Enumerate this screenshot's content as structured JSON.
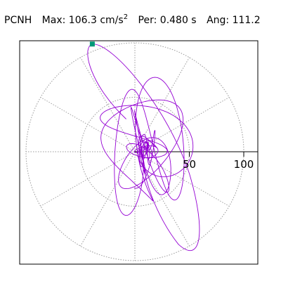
{
  "header": {
    "station": "PCNH",
    "max_label": "Max:",
    "max_value": "106.3",
    "max_unit_base": "cm/s",
    "max_unit_exp": "2",
    "per_label": "Per:",
    "per_value": "0.480 s",
    "ang_label": "Ang:",
    "ang_value": "111.2"
  },
  "chart_data": {
    "type": "polar-orbit",
    "radial_ticks": [
      50,
      100
    ],
    "radial_tick_labels": [
      "50",
      "100"
    ],
    "radial_range": [
      0,
      110
    ],
    "grid": "dotted concentric circles at 50 and 100 with radial spokes every 30 degrees",
    "max_amplitude": 106.3,
    "peak_angle_deg": 111.2,
    "period_s": 0.48,
    "trace_color": "#9400d3",
    "marker_color": "#009977",
    "marker": {
      "x": -39.1,
      "y": 98.9
    }
  }
}
